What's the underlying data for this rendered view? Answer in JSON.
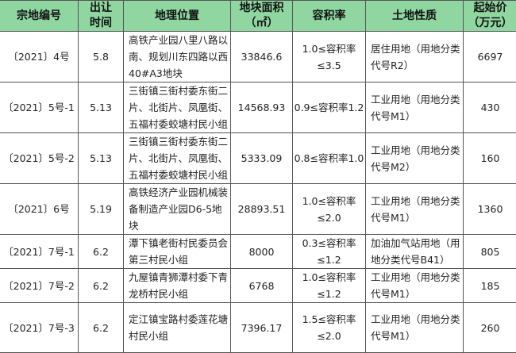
{
  "headers": {
    "id": "宗地编号",
    "date_1": "出让",
    "date_2": "时间",
    "loc": "地理位置",
    "area_1": "地块面积",
    "area_2": "（㎡）",
    "far": "容积率",
    "use": "土地性质",
    "price_1": "起始价",
    "price_2": "（万元）"
  },
  "rows": [
    {
      "id": "〔2021〕4号",
      "date": "5.8",
      "loc": "高铁产业园八里八路以南、规划川东四路以西40#A3地块",
      "area": "33846.6",
      "far": "1.0≤容积率≤3.5",
      "use": "居住用地（用地分类代号R2）",
      "price": "6697"
    },
    {
      "id": "〔2021〕5号-1",
      "date": "5.13",
      "loc": "三街镇三街村委东街二片、北街片、凤凰街、五福村委蛟塘村民小组",
      "area": "14568.93",
      "far": "0.9≤容积率1.2",
      "use": "工业用地（用地分类代号M1）",
      "price": "430"
    },
    {
      "id": "〔2021〕5号-2",
      "date": "5.13",
      "loc": "三街镇三街村委东街二片、北街片、凤凰街、五福村委蛟塘村民小组",
      "area": "5333.09",
      "far": "0.8≤容积率1.0",
      "use": "工业用地（用地分类代号M2）",
      "price": "160"
    },
    {
      "id": "〔2021〕6号",
      "date": "5.19",
      "loc": "高铁经济产业园机械装备制造产业园D6-5地块",
      "area": "28893.51",
      "far": "1.0≤容积率≤2.0",
      "use": "工业用地（用地分类代号M1）",
      "price": "1360"
    },
    {
      "id": "〔2021〕7号-1",
      "date": "6.2",
      "loc": "潭下镇老街村民委员会第三村民小组",
      "area": "8000",
      "far": "0.3≤容积率≤1.2",
      "use": "加油加气站用地（用地分类代号B41）",
      "price": "805"
    },
    {
      "id": "〔2021〕7号-2",
      "date": "6.2",
      "loc": "九屋镇青狮潭村委下青龙桥村民小组",
      "area": "6768",
      "far": "1.0≤容积率≤1.2",
      "use": "工业用地（用地分类代号M1）",
      "price": "185"
    },
    {
      "id": "〔2021〕7号-3",
      "date": "6.2",
      "loc": "定江镇宝路村委莲花塘村民小组",
      "area": "7396.17",
      "far": "1.5≤容积率≤2.0",
      "use": "工业用地（用地分类代号M1）",
      "price": "260"
    }
  ]
}
